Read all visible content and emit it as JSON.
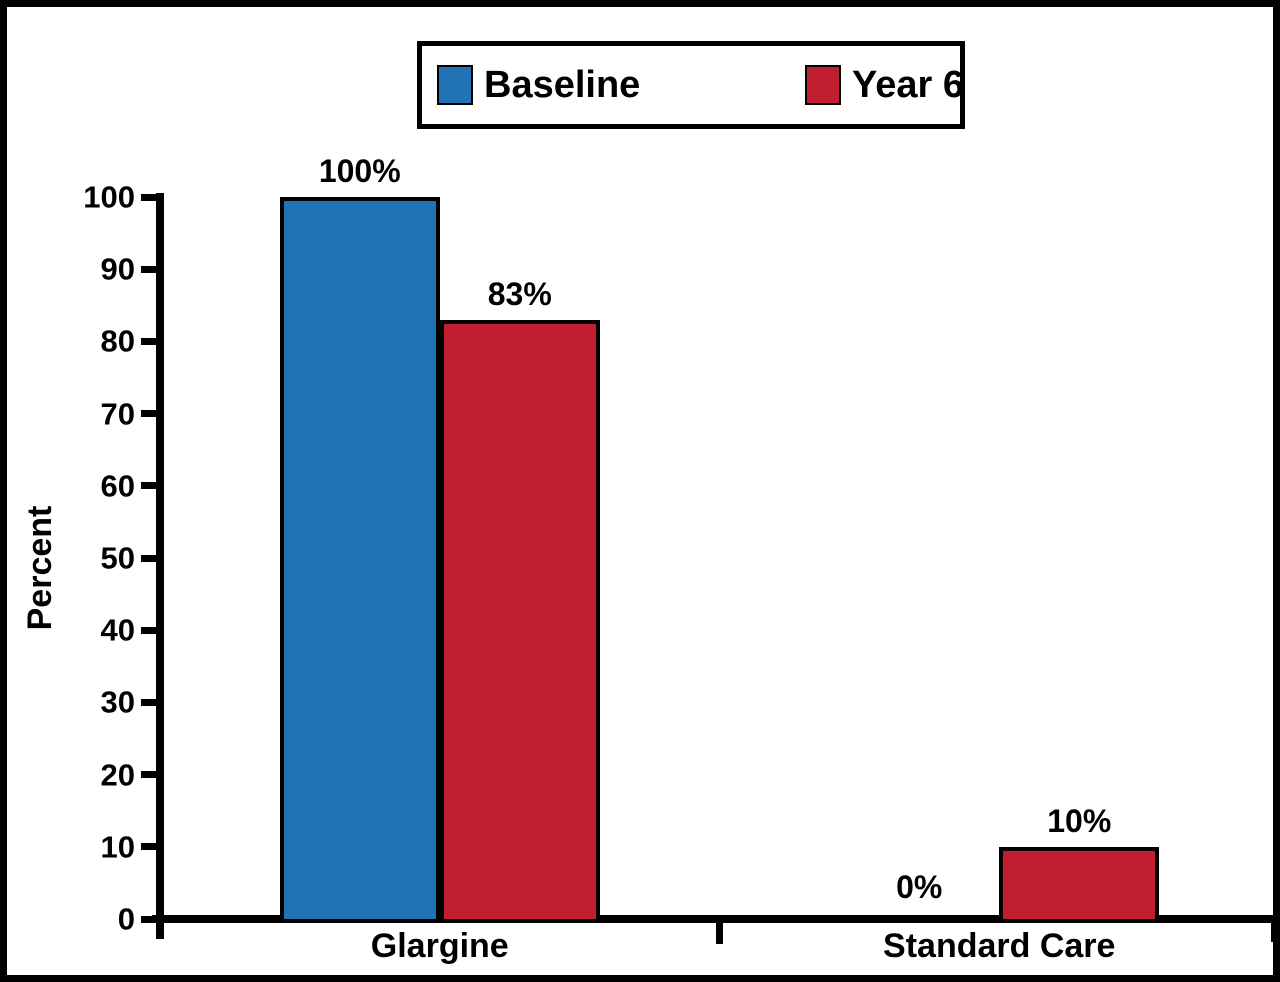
{
  "figure": {
    "background": "#ffffff",
    "border_color": "#000000"
  },
  "chart_data": {
    "type": "bar",
    "categories": [
      "Glargine",
      "Standard Care"
    ],
    "series": [
      {
        "name": "Baseline",
        "color": "#2273B6",
        "values": [
          100,
          0
        ],
        "value_labels": [
          "100%",
          "0%"
        ]
      },
      {
        "name": "Year 6",
        "color": "#C11F30",
        "values": [
          83,
          10
        ],
        "value_labels": [
          "83%",
          "10%"
        ]
      }
    ],
    "title": "",
    "xlabel": "",
    "ylabel": "Percent",
    "ylim": [
      0,
      100
    ],
    "yticks": [
      0,
      10,
      20,
      30,
      40,
      50,
      60,
      70,
      80,
      90,
      100
    ],
    "grid": false,
    "legend_position": "top-center",
    "bar_edge_color": "#000000",
    "axis_color": "#000000"
  }
}
